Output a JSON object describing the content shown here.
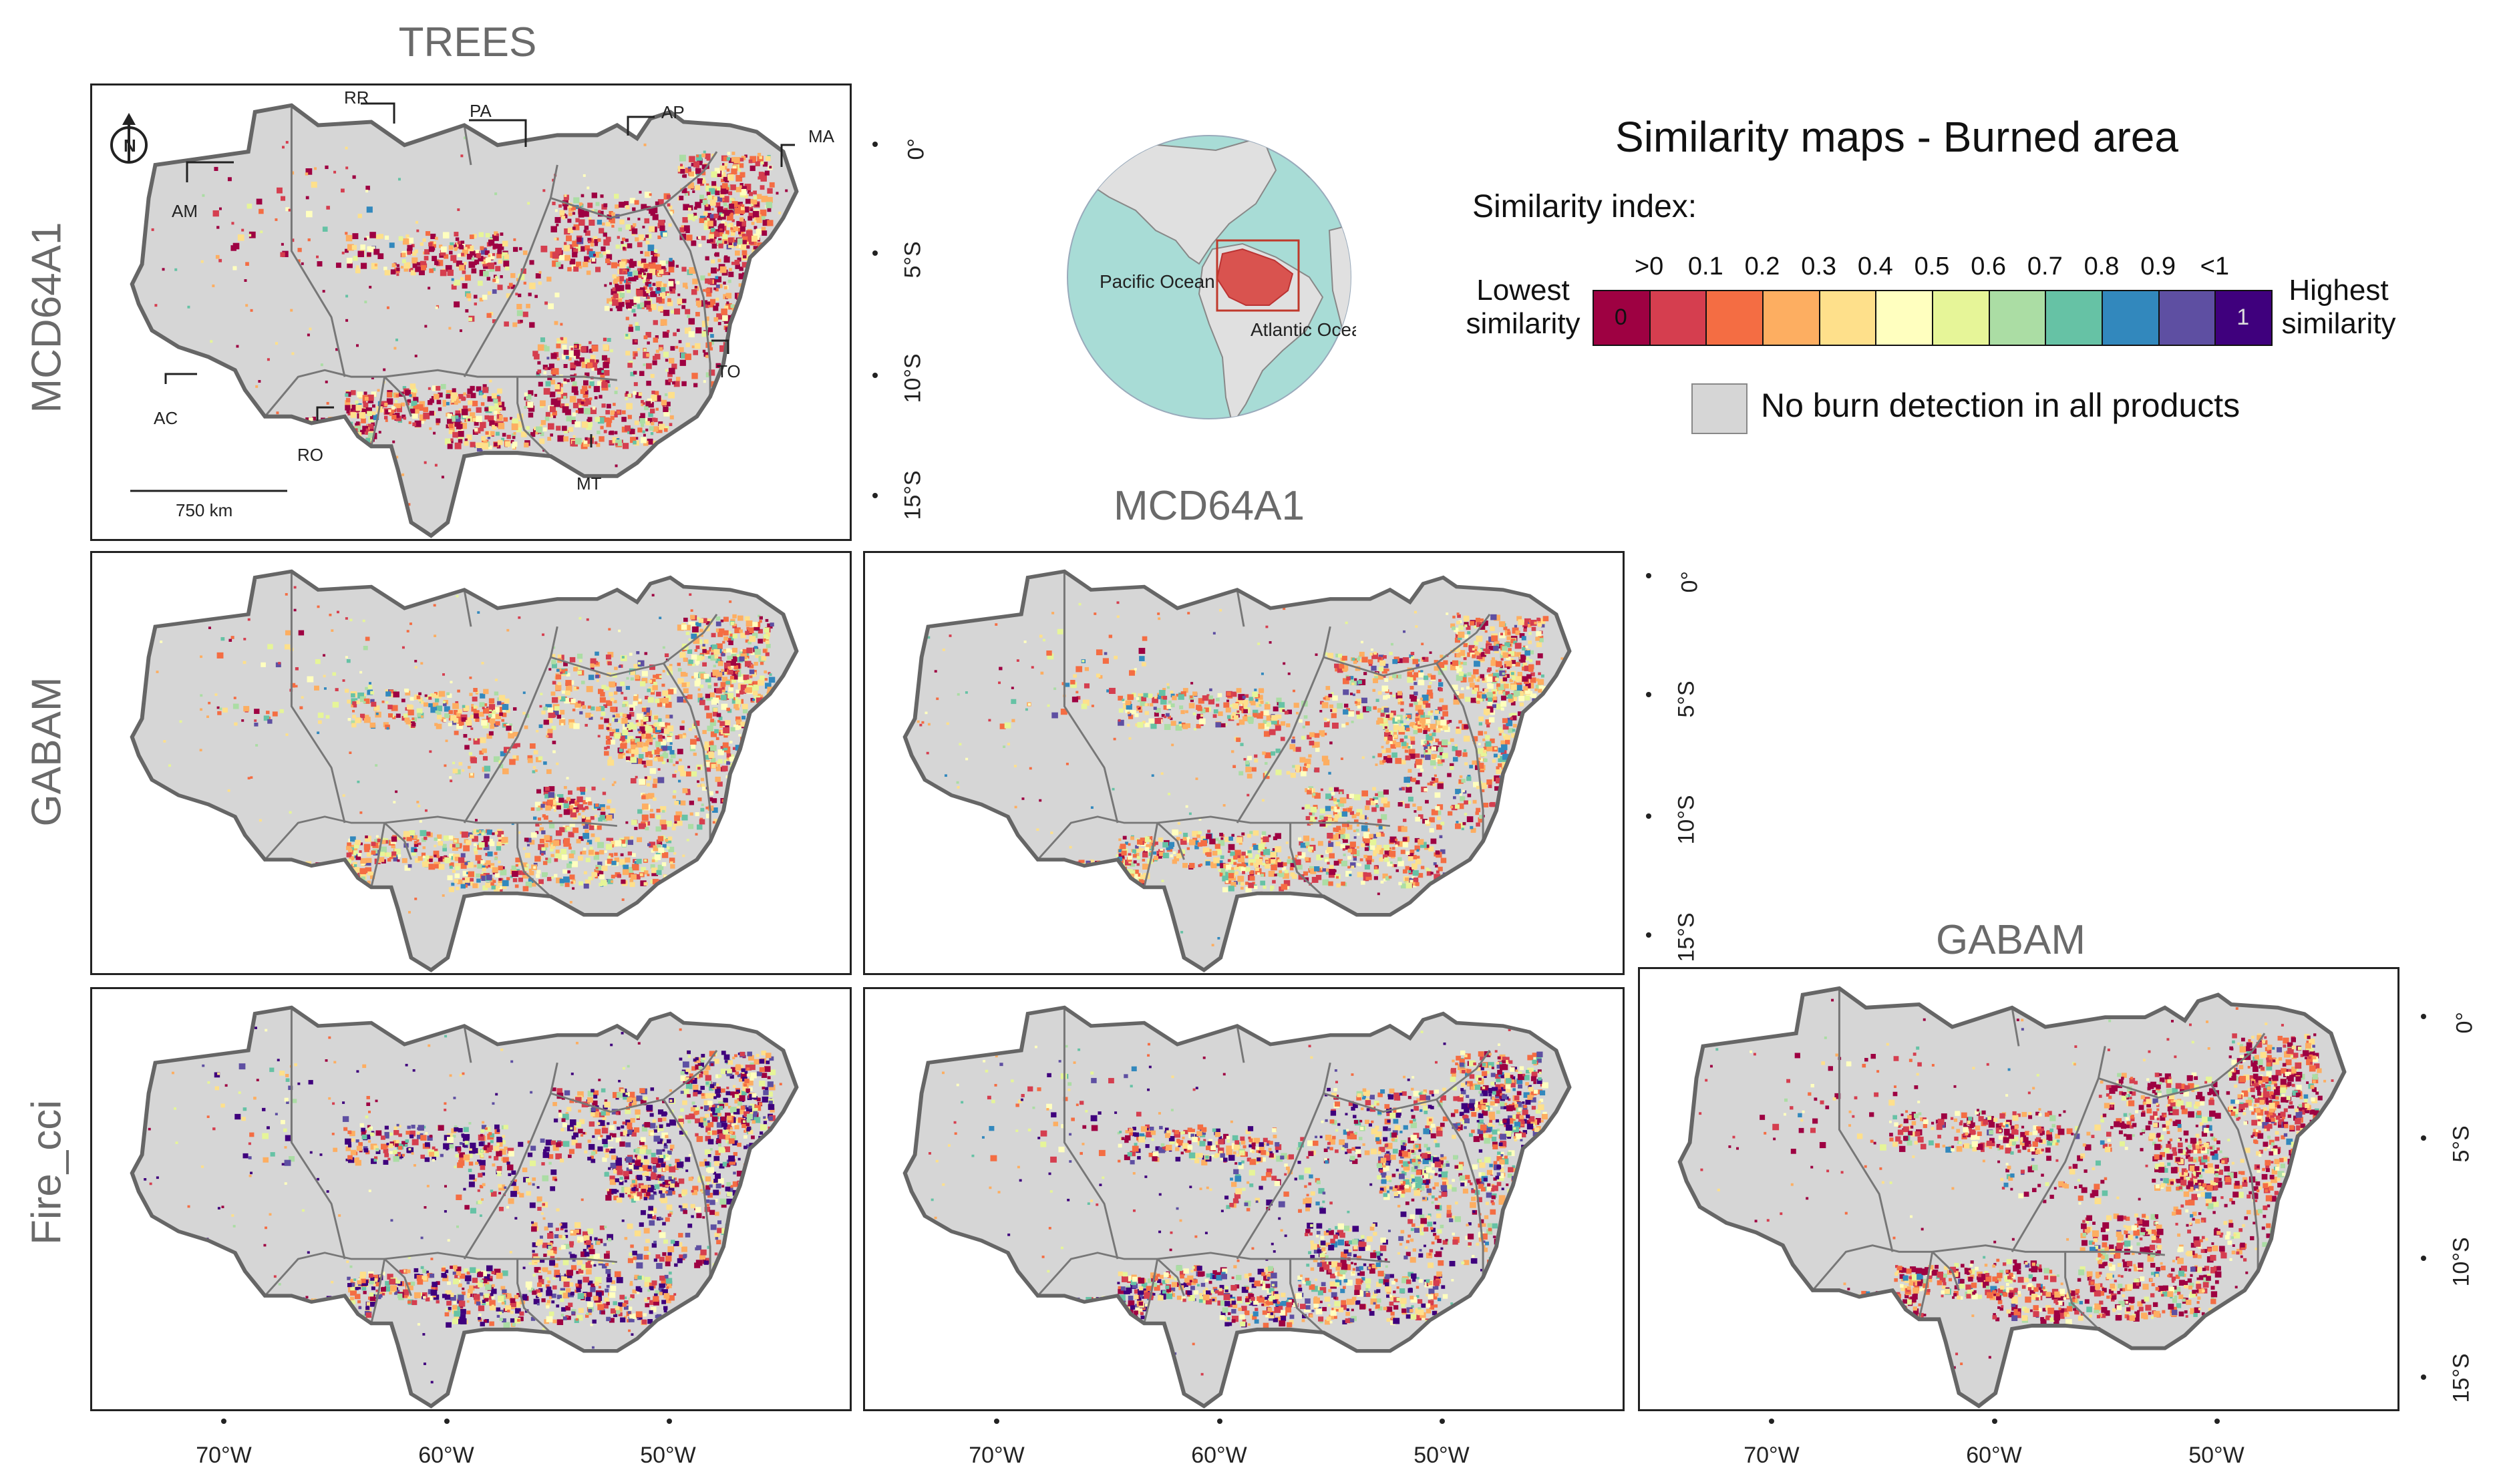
{
  "figure": {
    "column_titles": [
      "TREES",
      "MCD64A1",
      "GABAM"
    ],
    "row_titles": [
      "MCD64A1",
      "GABAM",
      "Fire_cci"
    ],
    "latitude_labels": [
      "0°",
      "5°S",
      "10°S",
      "15°S"
    ],
    "longitude_labels": [
      "70°W",
      "60°W",
      "50°W"
    ],
    "states": [
      "RR",
      "PA",
      "AP",
      "MA",
      "AM",
      "TO",
      "AC",
      "RO",
      "MT"
    ],
    "scale_bar": "750 km",
    "north_arrow": "N"
  },
  "inset": {
    "labels": [
      "Pacific Ocean",
      "Atlantic Ocean"
    ],
    "ocean_color": "#a8dcd6",
    "land_color": "#e0e0e0",
    "highlight_color": "#d9534f"
  },
  "legend": {
    "title": "Similarity maps - Burned area",
    "index_label": "Similarity index:",
    "lowest_label": "Lowest similarity",
    "highest_label": "Highest similarity",
    "tick_labels": [
      ">0",
      "0.1",
      "0.2",
      "0.3",
      "0.4",
      "0.5",
      "0.6",
      "0.7",
      "0.8",
      "0.9",
      "<1"
    ],
    "end_values": [
      "0",
      "1"
    ],
    "colors": [
      "#9e0142",
      "#d53e4f",
      "#f46d43",
      "#fdae61",
      "#fee08b",
      "#ffffbf",
      "#e6f598",
      "#abdda4",
      "#66c2a5",
      "#3288bd",
      "#5e4fa2",
      "#3f007d"
    ],
    "no_burn_label": "No burn detection in all products",
    "no_burn_color": "#d6d6d6"
  },
  "panels": [
    {
      "row": 0,
      "col": 0,
      "reference": "TREES",
      "product": "MCD64A1",
      "seed": 11,
      "bias": "red"
    },
    {
      "row": 1,
      "col": 0,
      "reference": "TREES",
      "product": "GABAM",
      "seed": 23,
      "bias": "mixed"
    },
    {
      "row": 1,
      "col": 1,
      "reference": "MCD64A1",
      "product": "GABAM",
      "seed": 37,
      "bias": "mixed"
    },
    {
      "row": 2,
      "col": 0,
      "reference": "TREES",
      "product": "Fire_cci",
      "seed": 41,
      "bias": "purple"
    },
    {
      "row": 2,
      "col": 1,
      "reference": "MCD64A1",
      "product": "Fire_cci",
      "seed": 53,
      "bias": "mixedpurple"
    },
    {
      "row": 2,
      "col": 2,
      "reference": "GABAM",
      "product": "Fire_cci",
      "seed": 67,
      "bias": "red"
    }
  ]
}
